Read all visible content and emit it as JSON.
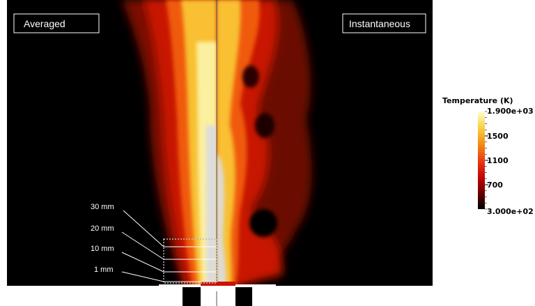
{
  "labels": {
    "averaged": "Averaged",
    "instantaneous": "Instantaneous"
  },
  "heights": [
    "30 mm",
    "20 mm",
    "10 mm",
    "1 mm"
  ],
  "colorbar": {
    "title": "Temperature (K)",
    "max_label": "1.900e+03",
    "ticks": [
      "1500",
      "1100",
      "700"
    ],
    "min_label": "3.000e+02",
    "range": [
      300,
      1900
    ],
    "tick_values": [
      1500,
      1100,
      700
    ],
    "colors": [
      "#000000",
      "#5a0000",
      "#b40000",
      "#e02010",
      "#f06010",
      "#f8a020",
      "#f8d850",
      "#ffffd0"
    ]
  },
  "colors": {
    "background": "#000000",
    "burner": "#ffffff",
    "core": "#dcdcdc"
  }
}
